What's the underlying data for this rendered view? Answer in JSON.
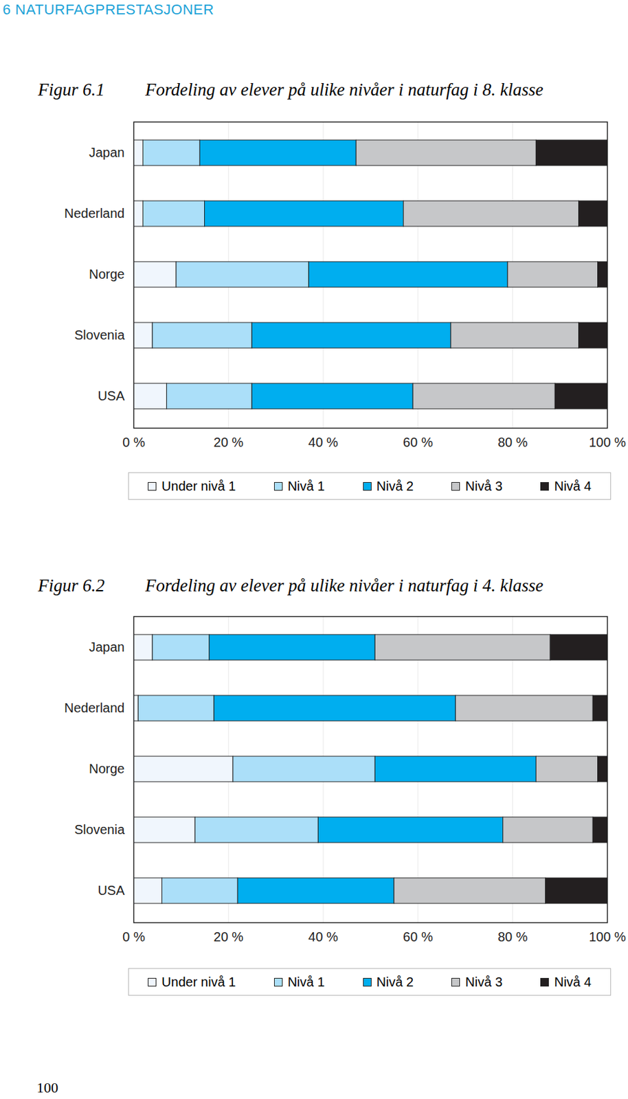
{
  "header": "6 NATURFAGPRESTASJONER",
  "page_number": 100,
  "chart_data": [
    {
      "type": "bar",
      "figure": "Figur 6.1",
      "title": "Fordeling av elever på ulike nivåer i naturfag i 8. klasse",
      "orientation": "horizontal",
      "stacked": true,
      "grid": true,
      "legend": "bottom",
      "categories": [
        "Japan",
        "Nederland",
        "Norge",
        "Slovenia",
        "USA"
      ],
      "series": [
        {
          "name": "Under nivå 1",
          "color": "#f0f6fd",
          "values": [
            2,
            2,
            9,
            4,
            7
          ]
        },
        {
          "name": "Nivå 1",
          "color": "#abdff9",
          "values": [
            12,
            13,
            28,
            21,
            18
          ]
        },
        {
          "name": "Nivå 2",
          "color": "#00aeef",
          "values": [
            33,
            42,
            42,
            42,
            34
          ]
        },
        {
          "name": "Nivå 3",
          "color": "#c6c7c9",
          "values": [
            38,
            37,
            19,
            27,
            30
          ]
        },
        {
          "name": "Nivå 4",
          "color": "#231f20",
          "values": [
            15,
            6,
            2,
            6,
            11
          ]
        }
      ],
      "xlim": [
        0,
        100
      ],
      "xticks": [
        {
          "value": 0,
          "label": "0 %"
        },
        {
          "value": 20,
          "label": "20 %"
        },
        {
          "value": 40,
          "label": "40 %"
        },
        {
          "value": 60,
          "label": "60 %"
        },
        {
          "value": 80,
          "label": "80 %"
        },
        {
          "value": 100,
          "label": "100 %"
        }
      ]
    },
    {
      "type": "bar",
      "figure": "Figur 6.2",
      "title": "Fordeling av elever på ulike nivåer i naturfag i 4. klasse",
      "orientation": "horizontal",
      "stacked": true,
      "grid": true,
      "legend": "bottom",
      "categories": [
        "Japan",
        "Nederland",
        "Norge",
        "Slovenia",
        "USA"
      ],
      "series": [
        {
          "name": "Under nivå 1",
          "color": "#f0f6fd",
          "values": [
            4,
            1,
            21,
            13,
            6
          ]
        },
        {
          "name": "Nivå 1",
          "color": "#abdff9",
          "values": [
            12,
            16,
            30,
            26,
            16
          ]
        },
        {
          "name": "Nivå 2",
          "color": "#00aeef",
          "values": [
            35,
            51,
            34,
            39,
            33
          ]
        },
        {
          "name": "Nivå 3",
          "color": "#c6c7c9",
          "values": [
            37,
            29,
            13,
            19,
            32
          ]
        },
        {
          "name": "Nivå 4",
          "color": "#231f20",
          "values": [
            12,
            3,
            2,
            3,
            13
          ]
        }
      ],
      "xlim": [
        0,
        100
      ],
      "xticks": [
        {
          "value": 0,
          "label": "0 %"
        },
        {
          "value": 20,
          "label": "20 %"
        },
        {
          "value": 40,
          "label": "40 %"
        },
        {
          "value": 60,
          "label": "60 %"
        },
        {
          "value": 80,
          "label": "80 %"
        },
        {
          "value": 100,
          "label": "100 %"
        }
      ]
    }
  ]
}
